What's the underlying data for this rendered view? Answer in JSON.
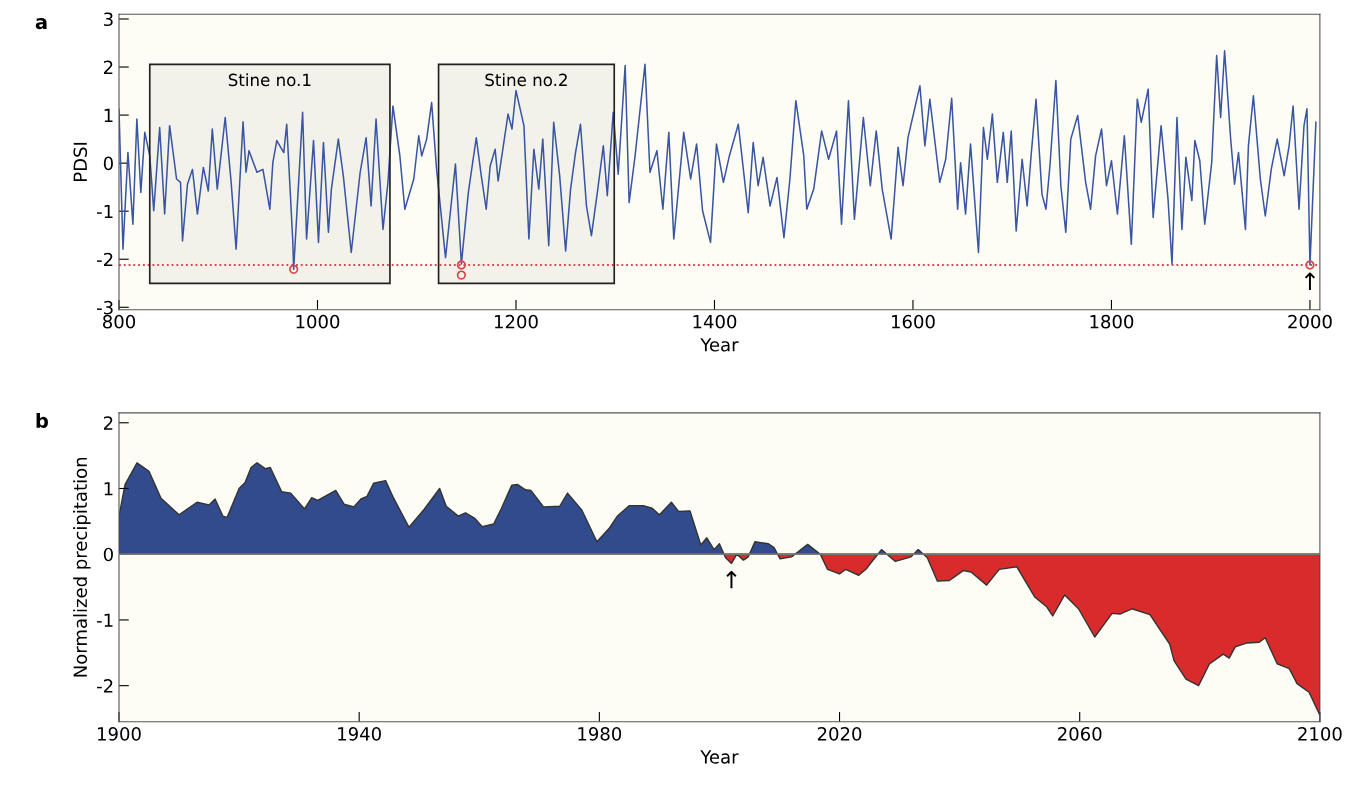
{
  "chart_data": [
    {
      "type": "line",
      "title": "a",
      "xlabel": "Year",
      "ylabel": "PDSI",
      "xlim": [
        800,
        2010
      ],
      "xticks": [
        800,
        1000,
        1200,
        1400,
        1600,
        1800,
        2000
      ],
      "ylim": [
        -3.05,
        3.1
      ],
      "yticks": [
        -3,
        -2,
        -1,
        0,
        1,
        2,
        3
      ],
      "grid": false,
      "legend": false,
      "series": [
        {
          "type": "line",
          "color": "#3a55a2",
          "marker": "none",
          "line_style": "solid",
          "x": [
            800,
            804,
            809,
            814,
            818,
            822,
            826,
            831,
            835,
            841,
            846,
            851,
            858,
            862,
            864,
            869,
            874,
            879,
            885,
            890,
            894,
            899,
            907,
            913,
            918,
            925,
            928,
            931,
            939,
            945,
            952,
            955,
            959,
            966,
            969,
            975,
            976,
            985,
            989,
            996,
            1001,
            1006,
            1011,
            1014,
            1021,
            1026,
            1034,
            1043,
            1049,
            1054,
            1059,
            1066,
            1071,
            1076,
            1083,
            1088,
            1097,
            1102,
            1105,
            1110,
            1115,
            1120,
            1129,
            1139,
            1145,
            1152,
            1160,
            1165,
            1170,
            1174,
            1179,
            1182,
            1192,
            1196,
            1200,
            1208,
            1213,
            1218,
            1223,
            1227,
            1233,
            1238,
            1244,
            1250,
            1255,
            1260,
            1265,
            1271,
            1276,
            1282,
            1288,
            1292,
            1298,
            1303,
            1310,
            1314,
            1320,
            1330,
            1335,
            1342,
            1348,
            1354,
            1359,
            1369,
            1376,
            1382,
            1388,
            1396,
            1402,
            1409,
            1415,
            1424,
            1434,
            1439,
            1444,
            1449,
            1456,
            1463,
            1470,
            1476,
            1482,
            1490,
            1493,
            1500,
            1508,
            1515,
            1523,
            1528,
            1535,
            1541,
            1550,
            1557,
            1563,
            1569,
            1578,
            1585,
            1590,
            1595,
            1607,
            1612,
            1617,
            1627,
            1633,
            1639,
            1645,
            1648,
            1653,
            1658,
            1666,
            1671,
            1675,
            1680,
            1685,
            1691,
            1695,
            1699,
            1704,
            1710,
            1715,
            1719,
            1724,
            1730,
            1734,
            1738,
            1744,
            1749,
            1754,
            1759,
            1766,
            1774,
            1779,
            1784,
            1790,
            1795,
            1800,
            1806,
            1813,
            1820,
            1826,
            1830,
            1837,
            1842,
            1850,
            1857,
            1861,
            1866,
            1871,
            1875,
            1881,
            1884,
            1889,
            1894,
            1901,
            1906,
            1910,
            1914,
            1920,
            1924,
            1928,
            1935,
            1938,
            1943,
            1950,
            1955,
            1961,
            1967,
            1974,
            1979,
            1983,
            1989,
            1994,
            1997,
            2000,
            2006
          ],
          "values": [
            1.12,
            -1.79,
            0.22,
            -1.27,
            0.92,
            -0.61,
            0.64,
            0.15,
            -0.99,
            0.74,
            -1.06,
            0.78,
            -0.33,
            -0.4,
            -1.62,
            -0.44,
            -0.13,
            -1.06,
            -0.09,
            -0.58,
            0.71,
            -0.54,
            0.95,
            -0.4,
            -1.79,
            0.86,
            -0.19,
            0.26,
            -0.19,
            -0.13,
            -0.96,
            0.01,
            0.47,
            0.22,
            0.81,
            -1.58,
            -2.21,
            1.06,
            -1.58,
            0.47,
            -1.65,
            0.43,
            -1.44,
            -0.54,
            0.5,
            -0.26,
            -1.86,
            -0.19,
            0.53,
            -0.89,
            0.92,
            -1.38,
            -0.4,
            1.19,
            0.15,
            -0.96,
            -0.33,
            0.57,
            0.15,
            0.5,
            1.26,
            -0.13,
            -1.97,
            -0.02,
            -2.1,
            -0.61,
            0.53,
            -0.26,
            -0.96,
            -0.06,
            0.29,
            -0.37,
            1.02,
            0.71,
            1.51,
            0.78,
            -1.58,
            0.29,
            -0.54,
            0.5,
            -1.72,
            0.85,
            -0.26,
            -1.83,
            -0.54,
            0.22,
            0.81,
            -0.89,
            -1.51,
            -0.61,
            0.36,
            -0.68,
            1.06,
            -0.23,
            2.03,
            -0.82,
            0.15,
            2.06,
            -0.19,
            0.26,
            -0.96,
            0.64,
            -1.58,
            0.64,
            -0.33,
            0.4,
            -0.99,
            -1.65,
            0.4,
            -0.4,
            0.15,
            0.81,
            -1.03,
            0.43,
            -0.47,
            0.12,
            -0.89,
            -0.3,
            -1.55,
            -0.33,
            1.3,
            0.15,
            -0.96,
            -0.54,
            0.67,
            0.08,
            0.67,
            -1.27,
            1.3,
            -1.17,
            0.95,
            -0.47,
            0.67,
            -0.54,
            -1.58,
            0.33,
            -0.47,
            0.53,
            1.61,
            0.36,
            1.33,
            -0.4,
            0.08,
            1.35,
            -0.96,
            0.01,
            -1.06,
            0.4,
            -1.86,
            0.74,
            0.08,
            1.02,
            -0.4,
            0.64,
            -0.4,
            0.67,
            -1.41,
            0.08,
            -0.89,
            0.15,
            1.33,
            -0.65,
            -0.96,
            -0.06,
            1.72,
            -0.47,
            -1.44,
            0.5,
            0.99,
            -0.4,
            -0.96,
            0.15,
            0.71,
            -0.47,
            0.05,
            -1.06,
            0.57,
            -1.69,
            1.33,
            0.85,
            1.54,
            -1.13,
            0.78,
            -0.75,
            -2.1,
            0.95,
            -1.38,
            0.12,
            -0.78,
            0.47,
            0.05,
            -1.27,
            0.01,
            2.24,
            0.95,
            2.34,
            0.53,
            -0.44,
            0.22,
            -1.38,
            0.36,
            1.4,
            -0.33,
            -1.1,
            -0.13,
            0.5,
            -0.26,
            0.36,
            1.19,
            -0.96,
            0.78,
            1.13,
            -2.12,
            0.85
          ]
        },
        {
          "type": "scatter",
          "color": "#e0404a",
          "marker": "circle",
          "x": [
            976,
            1145,
            1145,
            2000
          ],
          "values": [
            -2.21,
            -2.12,
            -2.33,
            -2.12
          ]
        }
      ],
      "bands": [
        {
          "axis": "x",
          "from": 831,
          "to": 1073,
          "label": "Stine no.1",
          "color": "#222222"
        },
        {
          "axis": "x",
          "from": 1122,
          "to": 1299,
          "label": "Stine no.2",
          "color": "#222222"
        }
      ],
      "ref_lines": [
        {
          "axis": "y",
          "value": -2.12,
          "color": "#e0404a",
          "line_style": "dotted"
        }
      ],
      "annotations": [
        {
          "text": "↑",
          "x": 2000,
          "y": -2.12
        }
      ]
    },
    {
      "type": "area",
      "title": "b",
      "xlabel": "Year",
      "ylabel": "Normalized precipitation",
      "xlim": [
        1900,
        2100
      ],
      "xticks": [
        1900,
        1940,
        1980,
        2020,
        2060,
        2100
      ],
      "ylim": [
        -2.55,
        2.15
      ],
      "yticks": [
        -2,
        -1,
        0,
        1,
        2
      ],
      "grid": false,
      "legend": false,
      "x": [
        1900,
        1901,
        1903,
        1905,
        1907,
        1910,
        1913,
        1915,
        1916,
        1917.3,
        1918,
        1920,
        1921,
        1922,
        1923,
        1924.4,
        1925.2,
        1927.1,
        1928.6,
        1930.9,
        1932.1,
        1933.1,
        1936.1,
        1937.5,
        1939.1,
        1940.3,
        1941.3,
        1942.4,
        1944.4,
        1945.7,
        1948.3,
        1950.8,
        1953.4,
        1954.5,
        1956.5,
        1957.7,
        1959.2,
        1960.5,
        1962.4,
        1963.7,
        1965.4,
        1966.4,
        1967.7,
        1968.6,
        1970.7,
        1973.4,
        1974.7,
        1977.1,
        1979.6,
        1981.6,
        1983,
        1985,
        1987.3,
        1988.8,
        1990,
        1992,
        1993.2,
        1995.1,
        1996.9,
        1997.9,
        1999.1,
        2000,
        2001,
        2002,
        2002.9,
        2004,
        2004.8,
        2005.9,
        2008.1,
        2009.1,
        2010.1,
        2012,
        2014.7,
        2016.8,
        2018,
        2020,
        2021,
        2023.2,
        2024.4,
        2025.5,
        2027,
        2029.3,
        2031.9,
        2033.1,
        2034.6,
        2036.3,
        2038.3,
        2040.6,
        2041.9,
        2044.5,
        2046.6,
        2049.5,
        2052.5,
        2054.5,
        2055.5,
        2057.5,
        2059.8,
        2062.5,
        2065.4,
        2066.7,
        2068.7,
        2071.7,
        2075,
        2075.7,
        2077.7,
        2079.8,
        2081.6,
        2083.9,
        2084.9,
        2085.9,
        2087.9,
        2089.9,
        2090.9,
        2092.9,
        2094.9,
        2096.2,
        2098.2,
        2100
      ],
      "series": [
        {
          "type": "area",
          "color": "#314b8c",
          "values": [
            0.58,
            1.06,
            1.39,
            1.26,
            0.85,
            0.6,
            0.79,
            0.75,
            0.84,
            0.58,
            0.56,
            1.0,
            1.09,
            1.32,
            1.39,
            1.3,
            1.32,
            0.95,
            0.93,
            0.69,
            0.86,
            0.82,
            0.97,
            0.76,
            0.72,
            0.84,
            0.88,
            1.08,
            1.12,
            0.86,
            0.41,
            0.68,
            1.0,
            0.73,
            0.58,
            0.63,
            0.55,
            0.42,
            0.46,
            0.7,
            1.05,
            1.06,
            0.98,
            0.97,
            0.72,
            0.73,
            0.93,
            0.67,
            0.19,
            0.39,
            0.58,
            0.74,
            0.74,
            0.7,
            0.6,
            0.79,
            0.65,
            0.66,
            0.14,
            0.25,
            0.07,
            0.16,
            null,
            null,
            null,
            null,
            null,
            0.19,
            0.16,
            0.1,
            null,
            null,
            0.15,
            0.0,
            null,
            null,
            null,
            null,
            null,
            null,
            0.07,
            null,
            null,
            0.07,
            null,
            null,
            null,
            null,
            null,
            null,
            null,
            null,
            null,
            null,
            null,
            null,
            null,
            null,
            null,
            null,
            null,
            null,
            null,
            null,
            null,
            null,
            null,
            null,
            null,
            null,
            null,
            null,
            null,
            null,
            null,
            null,
            null,
            null
          ]
        },
        {
          "type": "area",
          "color": "#d92b2b",
          "values": [
            null,
            null,
            null,
            null,
            null,
            null,
            null,
            null,
            null,
            null,
            null,
            null,
            null,
            null,
            null,
            null,
            null,
            null,
            null,
            null,
            null,
            null,
            null,
            null,
            null,
            null,
            null,
            null,
            null,
            null,
            null,
            null,
            null,
            null,
            null,
            null,
            null,
            null,
            null,
            null,
            null,
            null,
            null,
            null,
            null,
            null,
            null,
            null,
            null,
            null,
            null,
            null,
            null,
            null,
            null,
            null,
            null,
            null,
            null,
            null,
            null,
            null,
            -0.05,
            -0.14,
            0.0,
            -0.09,
            -0.04,
            null,
            null,
            null,
            -0.07,
            -0.04,
            null,
            null,
            -0.23,
            -0.3,
            -0.23,
            -0.32,
            -0.23,
            -0.1,
            null,
            -0.11,
            -0.04,
            null,
            -0.05,
            -0.41,
            -0.4,
            -0.25,
            -0.27,
            -0.47,
            -0.23,
            -0.19,
            -0.65,
            -0.8,
            -0.94,
            -0.62,
            -0.83,
            -1.26,
            -0.9,
            -0.91,
            -0.83,
            -0.92,
            -1.37,
            -1.62,
            -1.9,
            -2.0,
            -1.67,
            -1.52,
            -1.58,
            -1.41,
            -1.35,
            -1.34,
            -1.27,
            -1.67,
            -1.74,
            -1.97,
            -2.1,
            -2.45
          ]
        }
      ],
      "ref_lines": [
        {
          "axis": "y",
          "value": 0,
          "color": "#777777",
          "line_style": "solid"
        }
      ],
      "annotations": [
        {
          "text": "↑",
          "x": 2002,
          "y": -0.14
        }
      ]
    }
  ]
}
